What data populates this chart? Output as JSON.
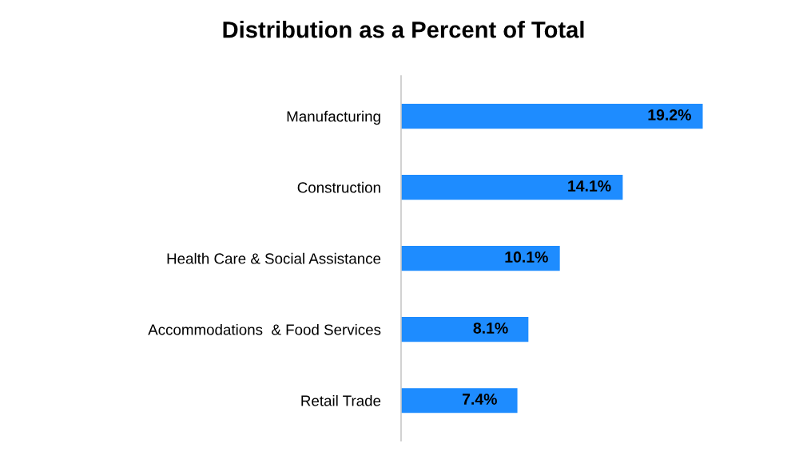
{
  "chart_data": {
    "type": "bar",
    "orientation": "horizontal",
    "title": "Distribution as a Percent of Total",
    "categories": [
      "Manufacturing",
      "Construction",
      "Health Care & Social Assistance",
      "Accommodations  & Food Services",
      "Retail Trade"
    ],
    "values": [
      19.2,
      14.1,
      10.1,
      8.1,
      7.4
    ],
    "value_labels": [
      "19.2%",
      "14.1%",
      "10.1%",
      "8.1%",
      "7.4%"
    ],
    "color": "#1e8cff",
    "grid": false,
    "legend": false
  }
}
